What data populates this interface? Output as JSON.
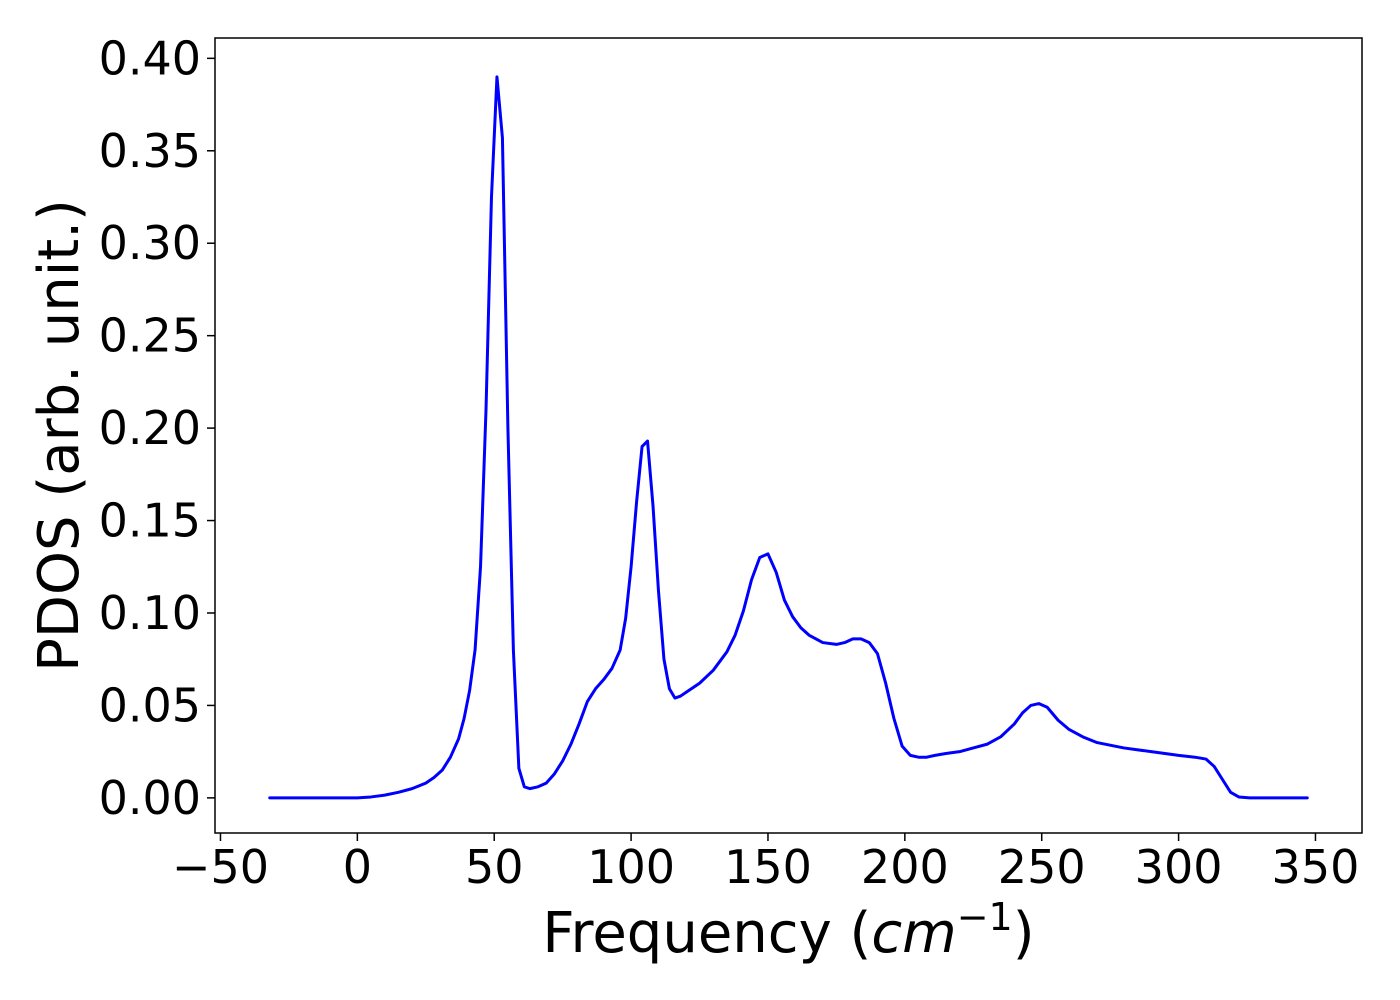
{
  "chart_data": {
    "type": "line",
    "xlabel": "Frequency (cm⁻¹)",
    "xlabel_parts": {
      "prefix": "Frequency (",
      "var": "cm",
      "sup": "−1",
      "suffix": ")"
    },
    "ylabel": "PDOS (arb. unit.)",
    "xlim": [
      -52,
      367
    ],
    "ylim": [
      -0.019,
      0.411
    ],
    "x_ticks": [
      -50,
      0,
      50,
      100,
      150,
      200,
      250,
      300,
      350
    ],
    "x_tick_labels": [
      "−50",
      "0",
      "50",
      "100",
      "150",
      "200",
      "250",
      "300",
      "350"
    ],
    "y_ticks": [
      0.0,
      0.05,
      0.1,
      0.15,
      0.2,
      0.25,
      0.3,
      0.35,
      0.4
    ],
    "y_tick_labels": [
      "0.00",
      "0.05",
      "0.10",
      "0.15",
      "0.20",
      "0.25",
      "0.30",
      "0.35",
      "0.40"
    ],
    "grid": false,
    "legend": "none",
    "colors": {
      "line": "#0000ff",
      "axes": "#000000",
      "background": "#ffffff"
    },
    "series": [
      {
        "x": [
          -32,
          -20,
          -10,
          0,
          5,
          10,
          15,
          20,
          25,
          28,
          31,
          34,
          37,
          39,
          41,
          43,
          45,
          47,
          49,
          51,
          53,
          55,
          57,
          59,
          61,
          63,
          66,
          69,
          72,
          75,
          78,
          81,
          84,
          87,
          90,
          93,
          96,
          98,
          100,
          102,
          104,
          106,
          108,
          110,
          112,
          114,
          116,
          118,
          121,
          125,
          130,
          135,
          138,
          141,
          144,
          147,
          150,
          153,
          156,
          159,
          162,
          165,
          170,
          175,
          178,
          181,
          184,
          187,
          190,
          193,
          196,
          199,
          202,
          205,
          208,
          211,
          215,
          220,
          225,
          230,
          235,
          240,
          243,
          246,
          249,
          252,
          256,
          260,
          265,
          270,
          280,
          290,
          300,
          306,
          310,
          313,
          316,
          319,
          322,
          326,
          335,
          347
        ],
        "y": [
          0.0,
          0.0,
          0.0,
          0.0,
          0.0005,
          0.0015,
          0.003,
          0.005,
          0.008,
          0.011,
          0.015,
          0.022,
          0.032,
          0.043,
          0.058,
          0.08,
          0.125,
          0.21,
          0.325,
          0.39,
          0.357,
          0.2,
          0.08,
          0.016,
          0.006,
          0.005,
          0.006,
          0.008,
          0.013,
          0.02,
          0.029,
          0.04,
          0.052,
          0.059,
          0.064,
          0.07,
          0.08,
          0.097,
          0.125,
          0.16,
          0.19,
          0.193,
          0.158,
          0.112,
          0.075,
          0.059,
          0.054,
          0.055,
          0.058,
          0.062,
          0.069,
          0.079,
          0.088,
          0.101,
          0.118,
          0.13,
          0.132,
          0.122,
          0.107,
          0.098,
          0.092,
          0.088,
          0.084,
          0.083,
          0.084,
          0.086,
          0.086,
          0.084,
          0.078,
          0.062,
          0.043,
          0.028,
          0.023,
          0.022,
          0.022,
          0.023,
          0.024,
          0.025,
          0.027,
          0.029,
          0.033,
          0.04,
          0.046,
          0.05,
          0.051,
          0.049,
          0.042,
          0.037,
          0.033,
          0.03,
          0.027,
          0.025,
          0.023,
          0.022,
          0.021,
          0.017,
          0.01,
          0.003,
          0.0005,
          0.0,
          0.0,
          0.0
        ]
      }
    ]
  }
}
